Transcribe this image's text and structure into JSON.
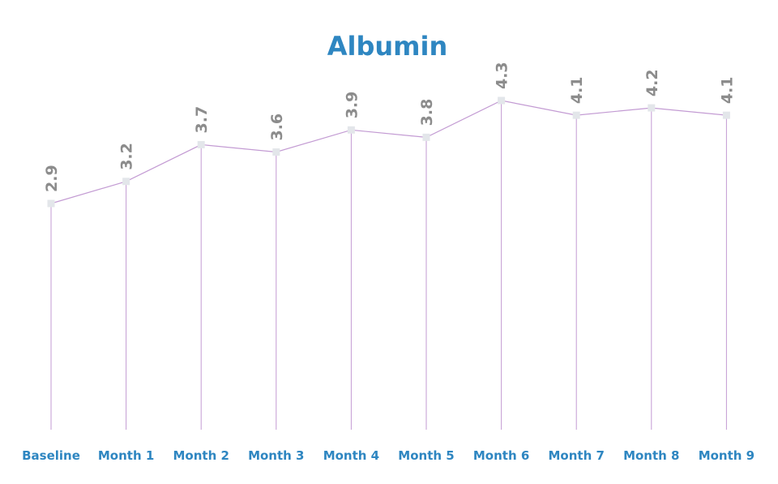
{
  "chart_data": {
    "type": "line",
    "title": "Albumin",
    "categories": [
      "Baseline",
      "Month 1",
      "Month 2",
      "Month 3",
      "Month 4",
      "Month 5",
      "Month 6",
      "Month 7",
      "Month 8",
      "Month 9"
    ],
    "values": [
      2.9,
      3.2,
      3.7,
      3.6,
      3.9,
      3.8,
      4.3,
      4.1,
      4.2,
      4.1
    ],
    "value_labels": [
      "2.9",
      "3.2",
      "3.7",
      "3.6",
      "3.9",
      "3.8",
      "4.3",
      "4.1",
      "4.2",
      "4.1"
    ],
    "xlabel": "",
    "ylabel": "",
    "ylim": [
      0,
      5
    ],
    "grid": false,
    "drop_lines": true,
    "legend": "none"
  },
  "colors": {
    "title": "#2e86c1",
    "category_label": "#2e86c1",
    "value_label": "#8c8c8c",
    "line": "#c39bd3",
    "marker": "#e3e6ea"
  }
}
